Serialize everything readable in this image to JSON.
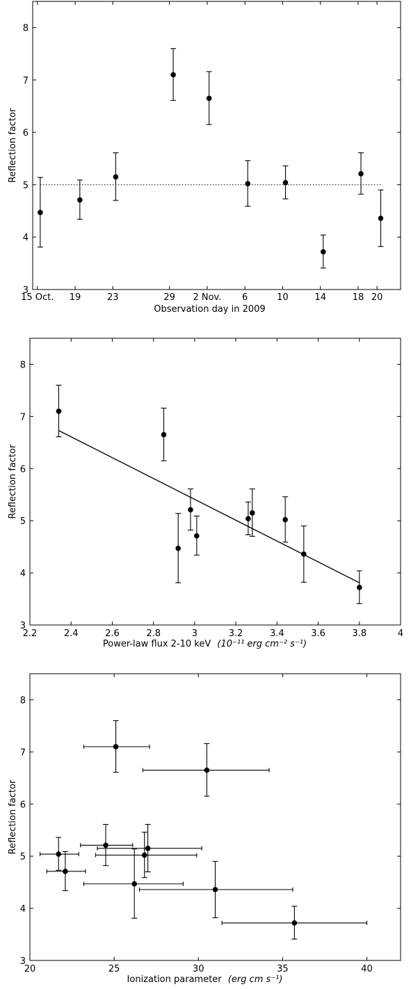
{
  "chart_data": [
    {
      "type": "scatter",
      "xlabel": "Observation day in 2009",
      "ylabel": "Reflection factor",
      "ylim": [
        3,
        8.5
      ],
      "yticks": [
        3,
        4,
        5,
        6,
        7,
        8
      ],
      "xticks": [
        {
          "label": "15 Oct.",
          "day": 15
        },
        {
          "label": "19",
          "day": 19
        },
        {
          "label": "23",
          "day": 23
        },
        {
          "label": "29",
          "day": 29
        },
        {
          "label": "2 Nov.",
          "day": 33
        },
        {
          "label": "6",
          "day": 37
        },
        {
          "label": "10",
          "day": 41
        },
        {
          "label": "14",
          "day": 45
        },
        {
          "label": "18",
          "day": 49
        },
        {
          "label": "20",
          "day": 51
        }
      ],
      "xlim": [
        14.5,
        53.5
      ],
      "reference_line": {
        "y": 5.0,
        "style": "dotted"
      },
      "points": [
        {
          "x": 15.3,
          "y": 4.47,
          "ylo": 3.81,
          "yhi": 5.14
        },
        {
          "x": 19.5,
          "y": 4.71,
          "ylo": 4.34,
          "yhi": 5.09
        },
        {
          "x": 23.3,
          "y": 5.15,
          "ylo": 4.7,
          "yhi": 5.61
        },
        {
          "x": 29.4,
          "y": 7.1,
          "ylo": 6.61,
          "yhi": 7.6
        },
        {
          "x": 33.2,
          "y": 6.65,
          "ylo": 6.15,
          "yhi": 7.16
        },
        {
          "x": 37.3,
          "y": 5.02,
          "ylo": 4.59,
          "yhi": 5.46
        },
        {
          "x": 41.3,
          "y": 5.04,
          "ylo": 4.73,
          "yhi": 5.36
        },
        {
          "x": 45.3,
          "y": 3.72,
          "ylo": 3.41,
          "yhi": 4.04
        },
        {
          "x": 49.3,
          "y": 5.21,
          "ylo": 4.82,
          "yhi": 5.61
        },
        {
          "x": 51.4,
          "y": 4.36,
          "ylo": 3.82,
          "yhi": 4.9
        }
      ]
    },
    {
      "type": "scatter",
      "xlabel": "Power-law flux 2-10 keV",
      "xlabel_unit": "(10⁻¹¹ erg cm⁻² s⁻¹)",
      "ylabel": "Reflection factor",
      "xlim": [
        2.2,
        4.0
      ],
      "ylim": [
        3,
        8.5
      ],
      "xticks": [
        2.2,
        2.4,
        2.6,
        2.8,
        3.0,
        3.2,
        3.4,
        3.6,
        3.8,
        4.0
      ],
      "xtick_labels": [
        "2.2",
        "2.4",
        "2.6",
        "2.8",
        "3",
        "3.2",
        "3.4",
        "3.6",
        "3.8",
        "4"
      ],
      "yticks": [
        3,
        4,
        5,
        6,
        7,
        8
      ],
      "fit_line": {
        "x": [
          2.34,
          3.8
        ],
        "y": [
          6.73,
          3.81
        ]
      },
      "points": [
        {
          "x": 2.34,
          "y": 7.1,
          "ylo": 6.61,
          "yhi": 7.6
        },
        {
          "x": 2.85,
          "y": 6.65,
          "ylo": 6.15,
          "yhi": 7.16
        },
        {
          "x": 2.92,
          "y": 4.47,
          "ylo": 3.81,
          "yhi": 5.14
        },
        {
          "x": 2.98,
          "y": 5.21,
          "ylo": 4.82,
          "yhi": 5.61
        },
        {
          "x": 3.01,
          "y": 4.71,
          "ylo": 4.34,
          "yhi": 5.09
        },
        {
          "x": 3.26,
          "y": 5.04,
          "ylo": 4.73,
          "yhi": 5.36
        },
        {
          "x": 3.28,
          "y": 5.15,
          "ylo": 4.7,
          "yhi": 5.61
        },
        {
          "x": 3.44,
          "y": 5.02,
          "ylo": 4.59,
          "yhi": 5.46
        },
        {
          "x": 3.53,
          "y": 4.36,
          "ylo": 3.82,
          "yhi": 4.9
        },
        {
          "x": 3.8,
          "y": 3.72,
          "ylo": 3.41,
          "yhi": 4.04
        }
      ]
    },
    {
      "type": "scatter",
      "xlabel": "Ionization parameter",
      "xlabel_unit": "(erg cm s⁻¹)",
      "ylabel": "Reflection factor",
      "xlim": [
        20,
        42
      ],
      "ylim": [
        3,
        8.5
      ],
      "xticks": [
        20,
        25,
        30,
        35,
        40
      ],
      "xtick_labels": [
        "20",
        "25",
        "30",
        "35",
        "40"
      ],
      "yticks": [
        3,
        4,
        5,
        6,
        7,
        8
      ],
      "points": [
        {
          "x": 25.1,
          "y": 7.1,
          "ylo": 6.61,
          "yhi": 7.6,
          "xlo": 23.2,
          "xhi": 27.1
        },
        {
          "x": 30.5,
          "y": 6.65,
          "ylo": 6.15,
          "yhi": 7.16,
          "xlo": 26.7,
          "xhi": 34.2
        },
        {
          "x": 21.7,
          "y": 5.04,
          "ylo": 4.73,
          "yhi": 5.36,
          "xlo": 20.6,
          "xhi": 22.9
        },
        {
          "x": 24.5,
          "y": 5.21,
          "ylo": 4.82,
          "yhi": 5.61,
          "xlo": 23.0,
          "xhi": 26.1
        },
        {
          "x": 27.0,
          "y": 5.15,
          "ylo": 4.7,
          "yhi": 5.61,
          "xlo": 24.0,
          "xhi": 30.2
        },
        {
          "x": 26.8,
          "y": 5.02,
          "ylo": 4.59,
          "yhi": 5.46,
          "xlo": 23.9,
          "xhi": 29.9
        },
        {
          "x": 22.1,
          "y": 4.71,
          "ylo": 4.34,
          "yhi": 5.09,
          "xlo": 21.0,
          "xhi": 23.3
        },
        {
          "x": 26.2,
          "y": 4.47,
          "ylo": 3.81,
          "yhi": 5.14,
          "xlo": 23.2,
          "xhi": 29.1
        },
        {
          "x": 31.0,
          "y": 4.36,
          "ylo": 3.82,
          "yhi": 4.9,
          "xlo": 26.5,
          "xhi": 35.6
        },
        {
          "x": 35.7,
          "y": 3.72,
          "ylo": 3.41,
          "yhi": 4.04,
          "xlo": 31.4,
          "xhi": 40.0
        }
      ]
    }
  ]
}
